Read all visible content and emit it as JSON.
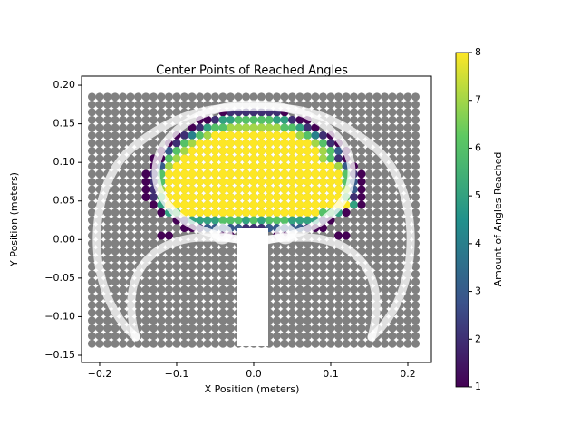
{
  "chart_data": {
    "type": "scatter",
    "title": "Center Points of Reached Angles",
    "x_label": "X Position (meters)",
    "y_label": "Y Position (meters)",
    "xlim": [
      -0.2235,
      0.2306
    ],
    "ylim": [
      -0.1594,
      0.2118
    ],
    "xticks": [
      {
        "value": -0.2,
        "label": "−0.2"
      },
      {
        "value": -0.1,
        "label": "−0.1"
      },
      {
        "value": 0,
        "label": "0.0"
      },
      0.1,
      0.2
    ],
    "yticks": [
      {
        "value": -0.15,
        "label": "−0.15"
      },
      {
        "value": -0.1,
        "label": "−0.10"
      },
      {
        "value": -0.05,
        "label": "−0.05"
      },
      {
        "value": 0,
        "label": "0.00"
      },
      0.05,
      {
        "value": 0.1,
        "label": "0.10"
      },
      0.15,
      {
        "value": 0.2,
        "label": "0.20"
      }
    ],
    "colorbar": {
      "label": "Amount of Angles Reached",
      "lim": [
        1,
        8
      ],
      "ticks": [
        1,
        2,
        3,
        4,
        5,
        6,
        7,
        8
      ],
      "colormap": "viridis"
    },
    "grid_point_color": "#808080",
    "grid_x": [
      -0.21,
      -0.2,
      -0.19,
      -0.18,
      -0.17,
      -0.16,
      -0.15,
      -0.14,
      -0.13,
      -0.12,
      -0.11,
      -0.1,
      -0.09,
      -0.08,
      -0.07,
      -0.06,
      -0.05,
      -0.04,
      -0.03,
      -0.02,
      -0.01,
      0,
      0.01,
      0.02,
      0.03,
      0.04,
      0.05,
      0.06,
      0.07,
      0.08,
      0.09,
      0.1,
      0.11,
      0.12,
      0.13,
      0.14,
      0.15,
      0.16,
      0.17,
      0.18,
      0.19,
      0.2,
      0.21
    ],
    "grid_y": [
      -0.135,
      -0.125,
      -0.115,
      -0.105,
      -0.095,
      -0.085,
      -0.075,
      -0.065,
      -0.055,
      -0.045,
      -0.035,
      -0.025,
      -0.015,
      -0.005,
      0.005,
      0.015,
      0.025,
      0.035,
      0.045,
      0.055,
      0.065,
      0.075,
      0.085,
      0.095,
      0.105,
      0.115,
      0.125,
      0.135,
      0.145,
      0.155,
      0.165,
      0.175,
      0.185
    ],
    "rows": [
      {
        "y": 0.165,
        "x": [
          -0.04,
          -0.03,
          -0.02,
          -0.01,
          0,
          0.01,
          0.02,
          0.03,
          0.04
        ],
        "values": [
          1,
          2,
          2,
          2,
          2,
          2,
          2,
          2,
          1
        ]
      },
      {
        "y": 0.155,
        "x": [
          -0.07,
          -0.06,
          -0.05,
          -0.04,
          -0.03,
          -0.02,
          -0.01,
          0,
          0.01,
          0.02,
          0.03,
          0.04,
          0.05,
          0.06,
          0.07
        ],
        "values": [
          1,
          1,
          2,
          5,
          5,
          6,
          6,
          6,
          6,
          6,
          5,
          5,
          2,
          1,
          1
        ]
      },
      {
        "y": 0.145,
        "x": [
          -0.08,
          -0.07,
          -0.06,
          -0.05,
          -0.04,
          -0.03,
          -0.02,
          -0.01,
          0,
          0.01,
          0.02,
          0.03,
          0.04,
          0.05,
          0.06,
          0.07,
          0.08
        ],
        "values": [
          1,
          2,
          5,
          6,
          6,
          7,
          7,
          7,
          7,
          7,
          7,
          7,
          6,
          6,
          5,
          2,
          1
        ]
      },
      {
        "y": 0.135,
        "x": [
          -0.1,
          -0.09,
          -0.08,
          -0.07,
          -0.06,
          -0.05,
          -0.04,
          -0.03,
          -0.02,
          -0.01,
          0,
          0.01,
          0.02,
          0.03,
          0.04,
          0.05,
          0.06,
          0.07,
          0.08,
          0.09,
          0.1
        ],
        "values": [
          1,
          2,
          4,
          6,
          7,
          8,
          8,
          8,
          8,
          8,
          8,
          8,
          8,
          8,
          8,
          8,
          7,
          6,
          4,
          2,
          1
        ]
      },
      {
        "y": 0.125,
        "x": [
          -0.11,
          -0.1,
          -0.09,
          -0.08,
          -0.07,
          -0.06,
          -0.05,
          -0.04,
          -0.03,
          -0.02,
          -0.01,
          0,
          0.01,
          0.02,
          0.03,
          0.04,
          0.05,
          0.06,
          0.07,
          0.08,
          0.09,
          0.1,
          0.11
        ],
        "values": [
          1,
          2,
          6,
          7,
          8,
          8,
          8,
          8,
          8,
          8,
          8,
          8,
          8,
          8,
          8,
          8,
          8,
          8,
          8,
          7,
          6,
          2,
          1
        ]
      },
      {
        "y": 0.115,
        "x": [
          -0.12,
          -0.11,
          -0.1,
          -0.09,
          -0.08,
          -0.07,
          -0.06,
          -0.05,
          -0.04,
          -0.03,
          -0.02,
          -0.01,
          0,
          0.01,
          0.02,
          0.03,
          0.04,
          0.05,
          0.06,
          0.07,
          0.08,
          0.09,
          0.1,
          0.11,
          0.12
        ],
        "values": [
          1,
          3,
          6,
          7,
          8,
          8,
          8,
          8,
          8,
          8,
          8,
          8,
          8,
          8,
          8,
          8,
          8,
          8,
          8,
          8,
          8,
          7,
          6,
          3,
          1
        ]
      },
      {
        "y": 0.105,
        "x": [
          -0.13,
          -0.12,
          -0.11,
          -0.1,
          -0.09,
          -0.08,
          -0.07,
          -0.06,
          -0.05,
          -0.04,
          -0.03,
          -0.02,
          -0.01,
          0,
          0.01,
          0.02,
          0.03,
          0.04,
          0.05,
          0.06,
          0.07,
          0.08,
          0.09,
          0.1,
          0.11,
          0.12
        ],
        "values": [
          1,
          1,
          6,
          7,
          8,
          8,
          8,
          8,
          8,
          8,
          8,
          8,
          8,
          8,
          8,
          8,
          8,
          8,
          8,
          8,
          8,
          8,
          7,
          6,
          2,
          1
        ]
      },
      {
        "y": 0.095,
        "x": [
          -0.13,
          -0.12,
          -0.11,
          -0.1,
          -0.09,
          -0.08,
          -0.07,
          -0.06,
          -0.05,
          -0.04,
          -0.03,
          -0.02,
          -0.01,
          0,
          0.01,
          0.02,
          0.03,
          0.04,
          0.05,
          0.06,
          0.07,
          0.08,
          0.09,
          0.1,
          0.11,
          0.12,
          0.13
        ],
        "values": [
          1,
          3,
          7,
          8,
          8,
          8,
          8,
          8,
          8,
          8,
          8,
          8,
          8,
          8,
          8,
          8,
          8,
          8,
          8,
          8,
          8,
          8,
          8,
          8,
          7,
          3,
          1
        ]
      },
      {
        "y": 0.085,
        "x": [
          -0.14,
          -0.13,
          -0.12,
          -0.11,
          -0.1,
          -0.09,
          -0.08,
          -0.07,
          -0.06,
          -0.05,
          -0.04,
          -0.03,
          -0.02,
          -0.01,
          0,
          0.01,
          0.02,
          0.03,
          0.04,
          0.05,
          0.06,
          0.07,
          0.08,
          0.09,
          0.1,
          0.11,
          0.12,
          0.13,
          0.14
        ],
        "values": [
          1,
          2,
          6,
          8,
          8,
          8,
          8,
          8,
          8,
          8,
          8,
          8,
          8,
          8,
          8,
          8,
          8,
          8,
          8,
          8,
          8,
          8,
          8,
          8,
          8,
          8,
          6,
          2,
          1
        ]
      },
      {
        "y": 0.075,
        "x": [
          -0.14,
          -0.13,
          -0.12,
          -0.11,
          -0.1,
          -0.09,
          -0.08,
          -0.07,
          -0.06,
          -0.05,
          -0.04,
          -0.03,
          -0.02,
          -0.01,
          0,
          0.01,
          0.02,
          0.03,
          0.04,
          0.05,
          0.06,
          0.07,
          0.08,
          0.09,
          0.1,
          0.11,
          0.12,
          0.13,
          0.14
        ],
        "values": [
          1,
          2,
          6,
          8,
          8,
          8,
          8,
          8,
          8,
          8,
          8,
          8,
          8,
          8,
          8,
          8,
          8,
          8,
          8,
          8,
          8,
          8,
          8,
          8,
          8,
          8,
          6,
          3,
          1
        ]
      },
      {
        "y": 0.065,
        "x": [
          -0.14,
          -0.13,
          -0.12,
          -0.11,
          -0.1,
          -0.09,
          -0.08,
          -0.07,
          -0.06,
          -0.05,
          -0.04,
          -0.03,
          -0.02,
          -0.01,
          0,
          0.01,
          0.02,
          0.03,
          0.04,
          0.05,
          0.06,
          0.07,
          0.08,
          0.09,
          0.1,
          0.11,
          0.12,
          0.13,
          0.14
        ],
        "values": [
          1,
          2,
          7,
          8,
          8,
          8,
          8,
          8,
          8,
          8,
          8,
          8,
          8,
          8,
          8,
          8,
          8,
          8,
          8,
          8,
          8,
          8,
          8,
          8,
          8,
          8,
          7,
          3,
          1
        ]
      },
      {
        "y": 0.055,
        "x": [
          -0.14,
          -0.13,
          -0.12,
          -0.11,
          -0.1,
          -0.09,
          -0.08,
          -0.07,
          -0.06,
          -0.05,
          -0.04,
          -0.03,
          -0.02,
          -0.01,
          0,
          0.01,
          0.02,
          0.03,
          0.04,
          0.05,
          0.06,
          0.07,
          0.08,
          0.09,
          0.1,
          0.11,
          0.12,
          0.13,
          0.14
        ],
        "values": [
          1,
          2,
          6,
          8,
          8,
          8,
          8,
          8,
          8,
          8,
          8,
          8,
          8,
          8,
          8,
          8,
          8,
          8,
          8,
          8,
          8,
          8,
          8,
          8,
          8,
          8,
          6,
          2,
          1
        ]
      },
      {
        "y": 0.045,
        "x": [
          -0.13,
          -0.12,
          -0.11,
          -0.1,
          -0.09,
          -0.08,
          -0.07,
          -0.06,
          -0.05,
          -0.04,
          -0.03,
          -0.02,
          -0.01,
          0,
          0.01,
          0.02,
          0.03,
          0.04,
          0.05,
          0.06,
          0.07,
          0.08,
          0.09,
          0.1,
          0.11,
          0.12,
          0.13,
          0.14
        ],
        "values": [
          1,
          5,
          8,
          8,
          8,
          8,
          8,
          8,
          8,
          8,
          8,
          8,
          8,
          8,
          8,
          8,
          8,
          8,
          8,
          8,
          8,
          8,
          8,
          8,
          8,
          8,
          5,
          1
        ]
      },
      {
        "y": 0.035,
        "x": [
          -0.12,
          -0.11,
          -0.1,
          -0.09,
          -0.08,
          -0.07,
          -0.06,
          -0.05,
          -0.04,
          -0.03,
          -0.02,
          -0.01,
          0,
          0.01,
          0.02,
          0.03,
          0.04,
          0.05,
          0.06,
          0.07,
          0.08,
          0.09,
          0.1,
          0.11,
          0.12
        ],
        "values": [
          1,
          5,
          6,
          8,
          8,
          8,
          8,
          8,
          8,
          8,
          8,
          8,
          8,
          8,
          8,
          8,
          8,
          8,
          8,
          8,
          8,
          6,
          6,
          5,
          1
        ]
      },
      {
        "y": 0.025,
        "x": [
          -0.1,
          -0.09,
          -0.08,
          -0.07,
          -0.06,
          -0.05,
          -0.04,
          -0.03,
          -0.02,
          -0.01,
          0,
          0.01,
          0.02,
          0.03,
          0.04,
          0.05,
          0.06,
          0.07,
          0.08,
          0.09,
          0.1
        ],
        "values": [
          1,
          2,
          5,
          5,
          5,
          5,
          6,
          6,
          6,
          5,
          6,
          5,
          6,
          6,
          6,
          5,
          5,
          5,
          5,
          2,
          1
        ]
      },
      {
        "y": 0.015,
        "x": [
          -0.09,
          -0.08,
          -0.07,
          -0.06,
          -0.05,
          -0.04,
          -0.03,
          -0.02,
          -0.01,
          0,
          0.01,
          0.02,
          0.03,
          0.04,
          0.05,
          0.06,
          0.07,
          0.08,
          0.09
        ],
        "values": [
          1,
          1,
          2,
          3,
          3,
          3,
          3,
          3,
          2,
          2,
          2,
          3,
          3,
          3,
          3,
          3,
          2,
          1,
          1
        ]
      },
      {
        "y": 0.005,
        "x": [
          -0.12,
          -0.11,
          -0.04,
          -0.03,
          -0.01,
          0,
          0.01,
          0.03,
          0.04,
          0.11,
          0.12
        ],
        "values": [
          1,
          1,
          1,
          1,
          1,
          1,
          1,
          1,
          1,
          1,
          1
        ]
      }
    ]
  }
}
